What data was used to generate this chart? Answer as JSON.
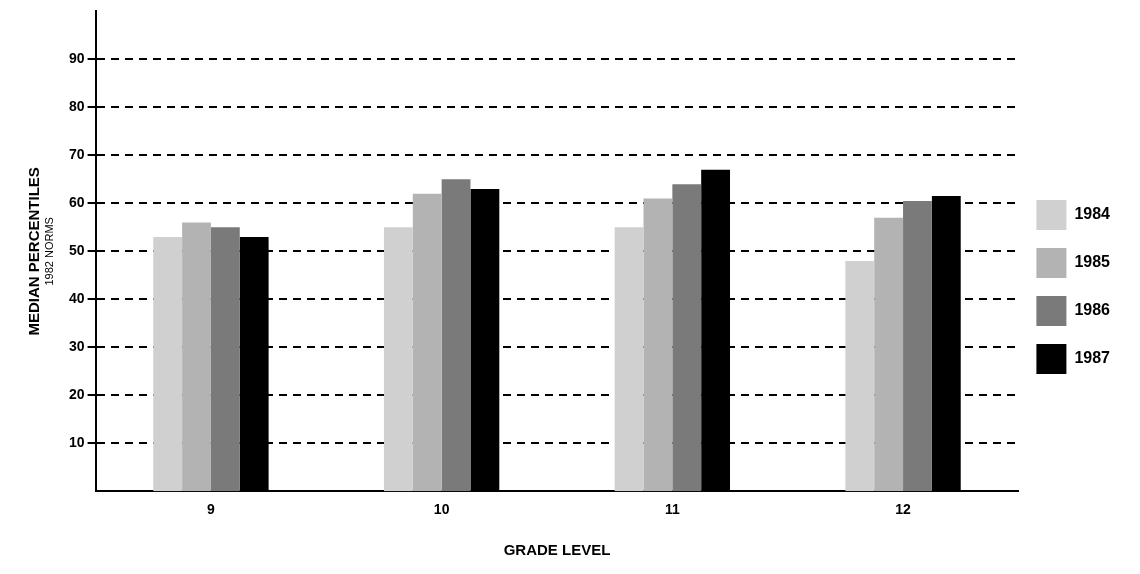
{
  "chart_data": {
    "type": "bar",
    "xlabel": "GRADE LEVEL",
    "ylabel": "MEDIAN PERCENTILES",
    "annotations": [
      "1982 NORMS"
    ],
    "categories": [
      "9",
      "10",
      "11",
      "12"
    ],
    "series": [
      {
        "name": "1984",
        "color": "#d0d0d0",
        "values": [
          53,
          55,
          55,
          48
        ]
      },
      {
        "name": "1985",
        "color": "#b3b3b3",
        "values": [
          56,
          62,
          61,
          57
        ]
      },
      {
        "name": "1986",
        "color": "#7a7a7a",
        "values": [
          55,
          65,
          64,
          60.5
        ]
      },
      {
        "name": "1987",
        "color": "#000000",
        "values": [
          53,
          63,
          67,
          61.5
        ]
      }
    ],
    "ylim": [
      0,
      100
    ],
    "yticks": [
      10,
      20,
      30,
      40,
      50,
      60,
      70,
      80,
      90
    ],
    "grid": "y",
    "legend": "right"
  }
}
